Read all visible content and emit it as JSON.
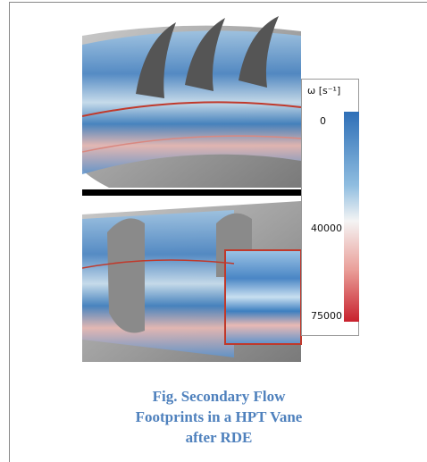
{
  "figure": {
    "colorbar": {
      "label": "ω [s⁻¹]",
      "ticks": [
        "0",
        "40000",
        "75000"
      ]
    },
    "caption": "Fig. Secondary Flow Footprints in a HPT Vane after RDE"
  }
}
